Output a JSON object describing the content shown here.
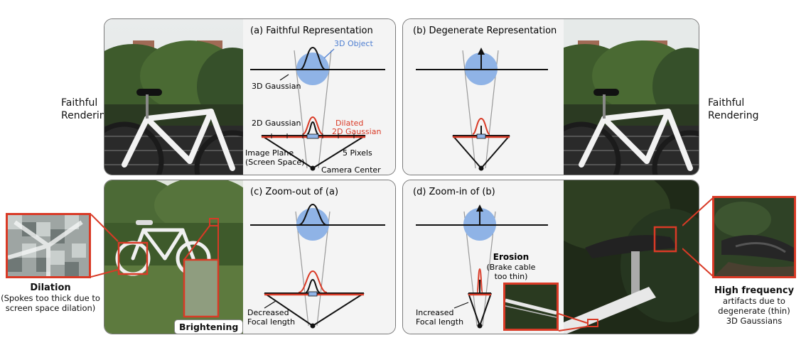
{
  "side_labels": {
    "left": "Faithful\nRendering",
    "right": "Faithful\nRendering"
  },
  "panel_a": {
    "title": "(a) Faithful Representation",
    "object_label": "3D Object",
    "gaussian3d_label": "3D Gaussian",
    "gaussian2d_label": "2D Gaussian",
    "dilated_label_1": "Dilated",
    "dilated_label_2": "2D Gaussian",
    "image_plane_1": "Image Plane",
    "image_plane_2": "(Screen Space)",
    "pixels_label": "5 Pixels",
    "camera_label": "Camera Center"
  },
  "panel_b": {
    "title": "(b) Degenerate Representation"
  },
  "panel_c": {
    "title": "(c) Zoom-out of (a)",
    "focal_1": "Decreased",
    "focal_2": "Focal length"
  },
  "panel_d": {
    "title": "(d) Zoom-in of (b)",
    "focal_1": "Increased",
    "focal_2": "Focal length",
    "erosion_title": "Erosion",
    "erosion_1": "(Brake cable",
    "erosion_2": "too thin)"
  },
  "dilation": {
    "title": "Dilation",
    "line1": "(Spokes too thick due to",
    "line2": "screen space dilation)"
  },
  "brightening": "Brightening",
  "high_freq": {
    "title": "High frequency",
    "line1": "artifacts due to",
    "line2": "degenerate (thin)",
    "line3": "3D Gaussians"
  },
  "colors": {
    "accent_red": "#d93a26",
    "object_blue": "#8fb3e6",
    "label_blue": "#4f7fd1",
    "panel_bg": "#f4f4f4"
  }
}
